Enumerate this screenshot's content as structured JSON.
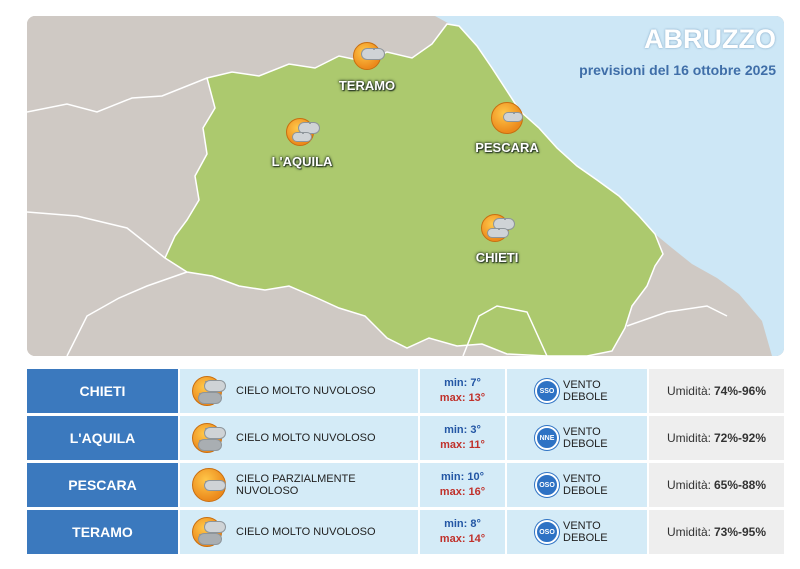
{
  "header": {
    "region": "ABRUZZO",
    "subtitle": "previsioni del 16 ottobre 2025"
  },
  "colors": {
    "sea": "#cde7f6",
    "region_fill": "#acc96e",
    "outside_land": "#cfc9c4",
    "city_column": "#3b79be",
    "table_cell": "#d4ebf7",
    "min_temp": "#2356a4",
    "max_temp": "#c0312b"
  },
  "map_labels": [
    {
      "id": "teramo",
      "name": "TERAMO",
      "icon": "sun-behind-cloud-icon"
    },
    {
      "id": "laquila",
      "name": "L'AQUILA",
      "icon": "sun-behind-cloud-icon"
    },
    {
      "id": "pescara",
      "name": "PESCARA",
      "icon": "sun-behind-small-cloud-icon"
    },
    {
      "id": "chieti",
      "name": "CHIETI",
      "icon": "sun-behind-cloud-icon"
    }
  ],
  "forecast": [
    {
      "city": "CHIETI",
      "sky": "CIELO MOLTO NUVOLOSO",
      "min_label": "min:",
      "min": "7°",
      "max_label": "max:",
      "max": "13°",
      "wind_dir": "SSO",
      "wind": "VENTO DEBOLE",
      "humidity_label": "Umidità:",
      "humidity": "74%-96%"
    },
    {
      "city": "L'AQUILA",
      "sky": "CIELO MOLTO NUVOLOSO",
      "min_label": "min:",
      "min": "3°",
      "max_label": "max:",
      "max": "11°",
      "wind_dir": "NNE",
      "wind": "VENTO DEBOLE",
      "humidity_label": "Umidità:",
      "humidity": "72%-92%"
    },
    {
      "city": "PESCARA",
      "sky": "CIELO PARZIALMENTE NUVOLOSO",
      "min_label": "min:",
      "min": "10°",
      "max_label": "max:",
      "max": "16°",
      "wind_dir": "OSO",
      "wind": "VENTO DEBOLE",
      "humidity_label": "Umidità:",
      "humidity": "65%-88%"
    },
    {
      "city": "TERAMO",
      "sky": "CIELO MOLTO NUVOLOSO",
      "min_label": "min:",
      "min": "8°",
      "max_label": "max:",
      "max": "14°",
      "wind_dir": "OSO",
      "wind": "VENTO DEBOLE",
      "humidity_label": "Umidità:",
      "humidity": "73%-95%"
    }
  ]
}
